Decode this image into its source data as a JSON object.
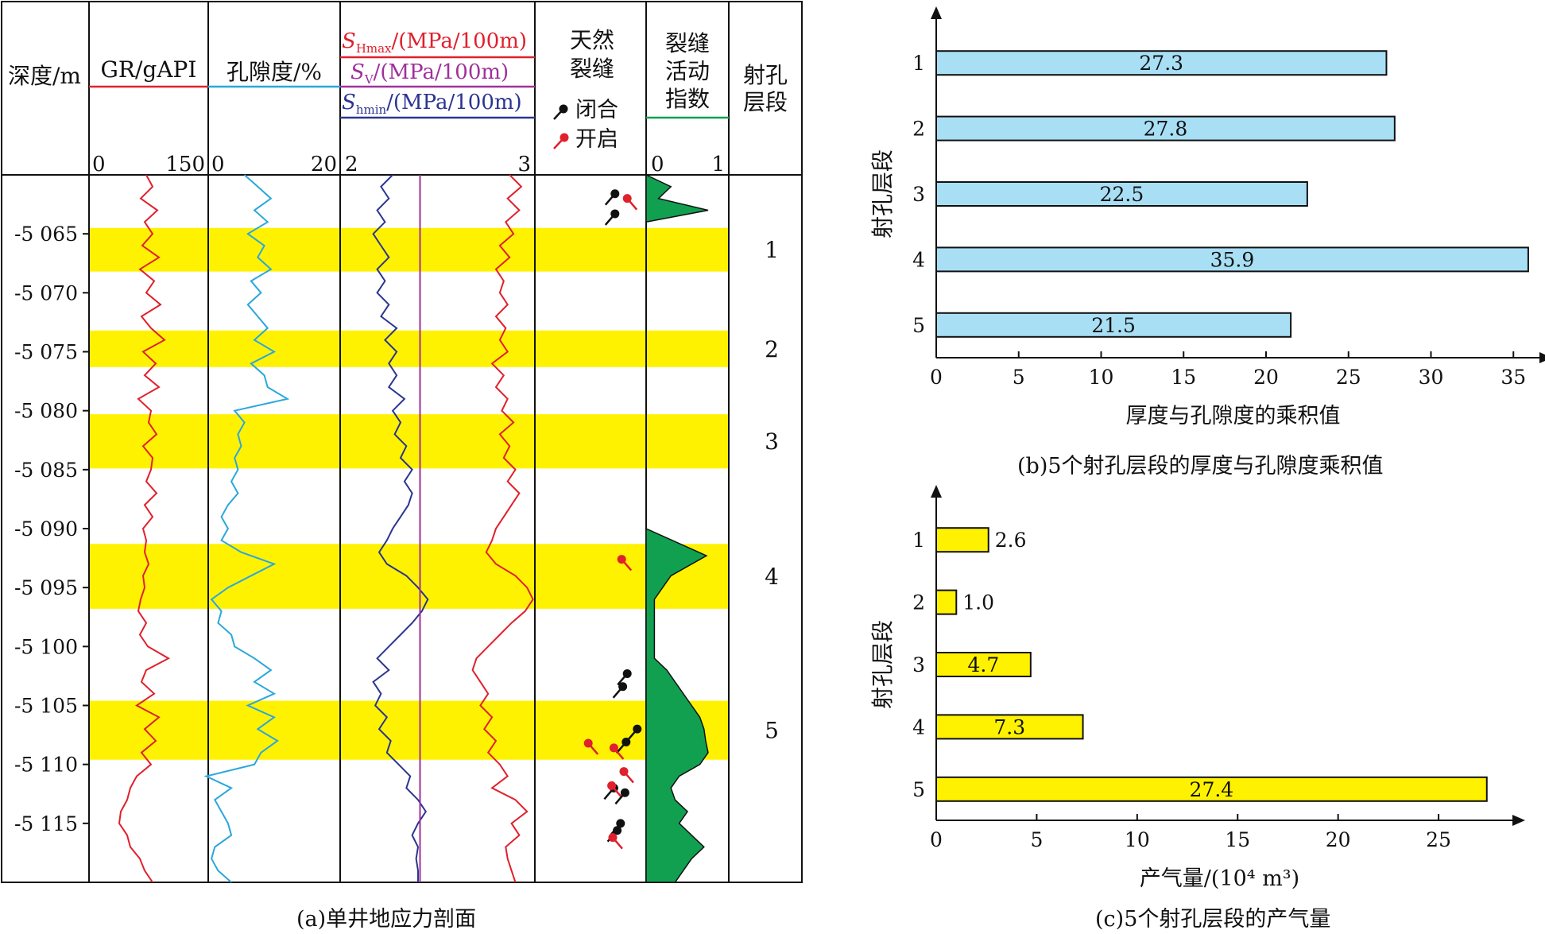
{
  "chart_data": [
    {
      "type": "well-log",
      "title": "(a)单井地应力剖面",
      "depth_label": "深度/m",
      "depth_range": [
        5060,
        5120
      ],
      "depth_ticks": [
        "-5 065",
        "-5 070",
        "-5 075",
        "-5 080",
        "-5 085",
        "-5 090",
        "-5 095",
        "-5 100",
        "-5 105",
        "-5 110",
        "-5 115"
      ],
      "depth_tick_values": [
        5065,
        5070,
        5075,
        5080,
        5085,
        5090,
        5095,
        5100,
        5105,
        5110,
        5115
      ],
      "tracks": {
        "gr": {
          "label": "GR/gAPI",
          "min_label": "0",
          "max_label": "150",
          "range": [
            0,
            150
          ],
          "color": "#e0202c"
        },
        "porosity": {
          "label": "孔隙度/%",
          "min_label": "0",
          "max_label": "20",
          "range": [
            0,
            20
          ],
          "color": "#2aa7dd"
        },
        "stress": {
          "min_label": "2",
          "max_label": "3",
          "range": [
            2,
            3
          ],
          "legend": [
            {
              "symbol": "S",
              "sub": "Hmax",
              "unit": "/(MPa/100m)",
              "color": "#e0202c"
            },
            {
              "symbol": "S",
              "sub": "V",
              "unit": "/(MPa/100m)",
              "color": "#a0309c"
            },
            {
              "symbol": "S",
              "sub": "hmin",
              "unit": "/(MPa/100m)",
              "color": "#2b3591"
            }
          ]
        },
        "fracture": {
          "label_lines": [
            "天然",
            "裂缝"
          ],
          "closed_label": "闭合",
          "open_label": "开启"
        },
        "activity": {
          "label_lines": [
            "裂缝",
            "活动",
            "指数"
          ],
          "min_label": "0",
          "max_label": "1",
          "color": "#11a050"
        },
        "perf": {
          "label_lines": [
            "射孔",
            "层段"
          ]
        }
      },
      "perforation_intervals": [
        {
          "label": "1",
          "top": 5064.5,
          "bottom": 5068.2
        },
        {
          "label": "2",
          "top": 5073.2,
          "bottom": 5076.3
        },
        {
          "label": "3",
          "top": 5080.3,
          "bottom": 5084.9
        },
        {
          "label": "4",
          "top": 5091.3,
          "bottom": 5096.8
        },
        {
          "label": "5",
          "top": 5104.6,
          "bottom": 5109.6
        }
      ],
      "gr_curve": {
        "depth": [
          5060,
          5061,
          5062,
          5063,
          5064,
          5065,
          5066,
          5067,
          5068,
          5069,
          5070,
          5071,
          5072,
          5073,
          5074,
          5075,
          5076,
          5077,
          5078,
          5079,
          5080,
          5081,
          5082,
          5083,
          5084,
          5085,
          5086,
          5087,
          5088,
          5089,
          5090,
          5091,
          5092,
          5093,
          5094,
          5095,
          5096,
          5097,
          5098,
          5099,
          5100,
          5101,
          5102,
          5103,
          5104,
          5105,
          5106,
          5107,
          5108,
          5109,
          5110,
          5111,
          5112,
          5113,
          5114,
          5115,
          5116,
          5117,
          5118,
          5119,
          5120
        ],
        "values": [
          72,
          80,
          65,
          86,
          70,
          80,
          67,
          88,
          64,
          82,
          72,
          90,
          66,
          78,
          95,
          68,
          84,
          70,
          88,
          62,
          78,
          75,
          85,
          68,
          80,
          78,
          72,
          85,
          70,
          80,
          68,
          72,
          70,
          75,
          68,
          70,
          65,
          62,
          72,
          64,
          74,
          100,
          72,
          66,
          82,
          60,
          88,
          70,
          84,
          66,
          78,
          60,
          52,
          48,
          40,
          38,
          48,
          52,
          64,
          70,
          80
        ]
      },
      "porosity_curve": {
        "depth": [
          5060,
          5061,
          5062,
          5063,
          5064,
          5065,
          5066,
          5067,
          5068,
          5069,
          5070,
          5071,
          5072,
          5073,
          5074,
          5075,
          5076,
          5077,
          5078,
          5079,
          5080,
          5081,
          5082,
          5083,
          5084,
          5085,
          5086,
          5087,
          5088,
          5089,
          5090,
          5091,
          5092,
          5093,
          5094,
          5095,
          5096,
          5097,
          5098,
          5099,
          5100,
          5101,
          5102,
          5103,
          5104,
          5105,
          5106,
          5107,
          5108,
          5109,
          5110,
          5111,
          5112,
          5113,
          5114,
          5115,
          5116,
          5117,
          5118,
          5119,
          5120
        ],
        "values": [
          5.5,
          7.5,
          9.5,
          7.0,
          9.0,
          6.0,
          8.5,
          7.5,
          9.5,
          6.5,
          8.0,
          6.0,
          7.5,
          9.0,
          7.0,
          10.0,
          6.5,
          8.5,
          9.0,
          12.0,
          4.0,
          5.5,
          4.5,
          5.0,
          4.0,
          4.5,
          3.5,
          4.5,
          3.0,
          2.0,
          3.0,
          2.0,
          5.0,
          10.0,
          6.5,
          3.0,
          0.5,
          2.0,
          1.5,
          3.5,
          4.0,
          7.0,
          9.5,
          7.0,
          10.0,
          6.0,
          10.0,
          7.5,
          10.5,
          8.0,
          7.0,
          -0.3,
          3.5,
          1.0,
          2.0,
          3.0,
          3.5,
          1.0,
          0.5,
          1.5,
          3.5
        ]
      },
      "shmax_curve": {
        "depth": [
          5060,
          5061,
          5062,
          5063,
          5064,
          5065,
          5066,
          5067,
          5068,
          5069,
          5070,
          5071,
          5072,
          5073,
          5074,
          5075,
          5076,
          5077,
          5078,
          5079,
          5080,
          5081,
          5082,
          5083,
          5084,
          5085,
          5086,
          5087,
          5088,
          5089,
          5090,
          5091,
          5092,
          5093,
          5094,
          5095,
          5096,
          5097,
          5098,
          5099,
          5100,
          5101,
          5102,
          5103,
          5104,
          5105,
          5106,
          5107,
          5108,
          5109,
          5110,
          5111,
          5112,
          5113,
          5114,
          5115,
          5116,
          5117,
          5118,
          5119,
          5120
        ],
        "values": [
          2.87,
          2.93,
          2.86,
          2.92,
          2.85,
          2.89,
          2.82,
          2.87,
          2.8,
          2.84,
          2.82,
          2.86,
          2.8,
          2.85,
          2.82,
          2.86,
          2.78,
          2.84,
          2.8,
          2.86,
          2.83,
          2.89,
          2.82,
          2.87,
          2.84,
          2.9,
          2.86,
          2.92,
          2.88,
          2.84,
          2.8,
          2.78,
          2.75,
          2.8,
          2.9,
          2.96,
          2.99,
          2.95,
          2.88,
          2.82,
          2.76,
          2.7,
          2.68,
          2.72,
          2.76,
          2.72,
          2.78,
          2.74,
          2.8,
          2.76,
          2.82,
          2.86,
          2.78,
          2.9,
          2.96,
          2.88,
          2.92,
          2.85,
          2.86,
          2.88,
          2.9
        ]
      },
      "sv_curve": {
        "depth": [
          5060,
          5120
        ],
        "values": [
          2.41,
          2.41
        ]
      },
      "shmin_curve": {
        "depth": [
          5060,
          5061,
          5062,
          5063,
          5064,
          5065,
          5066,
          5067,
          5068,
          5069,
          5070,
          5071,
          5072,
          5073,
          5074,
          5075,
          5076,
          5077,
          5078,
          5079,
          5080,
          5081,
          5082,
          5083,
          5084,
          5085,
          5086,
          5087,
          5088,
          5089,
          5090,
          5091,
          5092,
          5093,
          5094,
          5095,
          5096,
          5097,
          5098,
          5099,
          5100,
          5101,
          5102,
          5103,
          5104,
          5105,
          5106,
          5107,
          5108,
          5109,
          5110,
          5111,
          5112,
          5113,
          5114,
          5115,
          5116,
          5117,
          5118,
          5119,
          5120
        ],
        "values": [
          2.27,
          2.21,
          2.25,
          2.19,
          2.23,
          2.17,
          2.21,
          2.25,
          2.19,
          2.23,
          2.19,
          2.25,
          2.21,
          2.29,
          2.23,
          2.29,
          2.25,
          2.29,
          2.25,
          2.33,
          2.27,
          2.31,
          2.28,
          2.34,
          2.31,
          2.37,
          2.33,
          2.37,
          2.35,
          2.31,
          2.27,
          2.24,
          2.2,
          2.24,
          2.34,
          2.4,
          2.45,
          2.42,
          2.37,
          2.31,
          2.25,
          2.19,
          2.25,
          2.17,
          2.21,
          2.18,
          2.24,
          2.2,
          2.26,
          2.24,
          2.3,
          2.36,
          2.34,
          2.4,
          2.44,
          2.4,
          2.37,
          2.4,
          2.39,
          2.4,
          2.4
        ]
      },
      "fractures": [
        {
          "state": "closed",
          "depth": 5061.6,
          "pos": 0.72,
          "dir": 1
        },
        {
          "state": "open",
          "depth": 5062.0,
          "pos": 0.83,
          "dir": -1
        },
        {
          "state": "closed",
          "depth": 5063.3,
          "pos": 0.72,
          "dir": 1
        },
        {
          "state": "open",
          "depth": 5092.6,
          "pos": 0.78,
          "dir": -1
        },
        {
          "state": "closed",
          "depth": 5102.3,
          "pos": 0.83,
          "dir": 1
        },
        {
          "state": "closed",
          "depth": 5103.4,
          "pos": 0.79,
          "dir": 1
        },
        {
          "state": "closed",
          "depth": 5107.0,
          "pos": 0.92,
          "dir": 1
        },
        {
          "state": "closed",
          "depth": 5108.1,
          "pos": 0.82,
          "dir": 1
        },
        {
          "state": "open",
          "depth": 5108.2,
          "pos": 0.48,
          "dir": -1
        },
        {
          "state": "open",
          "depth": 5108.6,
          "pos": 0.71,
          "dir": -1
        },
        {
          "state": "open",
          "depth": 5110.6,
          "pos": 0.8,
          "dir": -1
        },
        {
          "state": "closed",
          "depth": 5112.0,
          "pos": 0.71,
          "dir": 1
        },
        {
          "state": "open",
          "depth": 5111.8,
          "pos": 0.69,
          "dir": -1
        },
        {
          "state": "closed",
          "depth": 5112.4,
          "pos": 0.81,
          "dir": 1
        },
        {
          "state": "closed",
          "depth": 5115.0,
          "pos": 0.77,
          "dir": 1
        },
        {
          "state": "closed",
          "depth": 5115.6,
          "pos": 0.74,
          "dir": 1
        },
        {
          "state": "open",
          "depth": 5116.2,
          "pos": 0.7,
          "dir": -1
        }
      ],
      "activity_curve": {
        "depth": [
          5060,
          5061,
          5062,
          5063,
          5064,
          5090,
          5092.3,
          5094,
          5096,
          5101,
          5102,
          5103,
          5104,
          5105,
          5106,
          5107,
          5108,
          5109,
          5110,
          5111,
          5112,
          5113,
          5114,
          5115,
          5116,
          5117,
          5118,
          5119,
          5120
        ],
        "values": [
          0,
          0.3,
          0.15,
          0.75,
          0,
          0,
          0.73,
          0.3,
          0.1,
          0.1,
          0.25,
          0.35,
          0.45,
          0.55,
          0.65,
          0.7,
          0.72,
          0.75,
          0.65,
          0.4,
          0.3,
          0.35,
          0.5,
          0.4,
          0.55,
          0.7,
          0.55,
          0.45,
          0.35
        ]
      }
    },
    {
      "type": "bar",
      "orientation": "horizontal",
      "title": "(b)5个射孔层段的厚度与孔隙度乘积值",
      "categories": [
        "1",
        "2",
        "3",
        "4",
        "5"
      ],
      "values": [
        27.3,
        27.8,
        22.5,
        35.9,
        21.5
      ],
      "value_labels": [
        "27.3",
        "27.8",
        "22.5",
        "35.9",
        "21.5"
      ],
      "xlabel": "厚度与孔隙度的乘积值",
      "ylabel": "射孔层段",
      "xlim": [
        0,
        36
      ],
      "xticks": [
        "0",
        "5",
        "10",
        "15",
        "20",
        "25",
        "30",
        "35"
      ],
      "xtick_values": [
        0,
        5,
        10,
        15,
        20,
        25,
        30,
        35
      ],
      "bar_color": "#a8dff5"
    },
    {
      "type": "bar",
      "orientation": "horizontal",
      "title": "(c)5个射孔层段的产气量",
      "categories": [
        "1",
        "2",
        "3",
        "4",
        "5"
      ],
      "values": [
        2.6,
        1.0,
        4.7,
        7.3,
        27.4
      ],
      "value_labels": [
        "2.6",
        "1.0",
        "4.7",
        "7.3",
        "27.4"
      ],
      "xlabel": "产气量/(10⁴ m³)",
      "ylabel": "射孔层段",
      "xlim": [
        0,
        28.2
      ],
      "xticks": [
        "0",
        "5",
        "10",
        "15",
        "20",
        "25"
      ],
      "xtick_values": [
        0,
        5,
        10,
        15,
        20,
        25
      ],
      "bar_color": "#fff200"
    }
  ]
}
